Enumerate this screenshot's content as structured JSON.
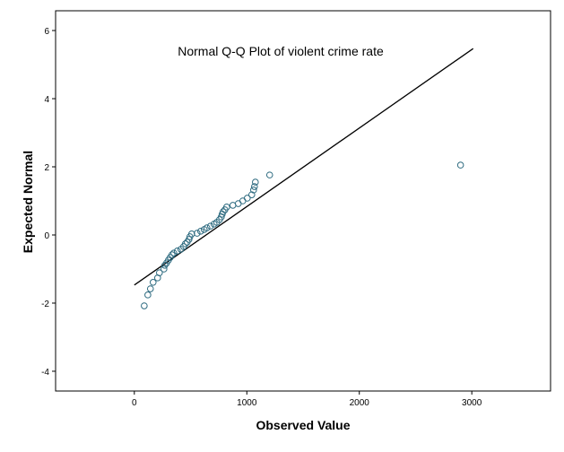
{
  "chart_data": {
    "type": "scatter",
    "title": "Normal Q-Q Plot of violent crime rate",
    "xlabel": "Observed Value",
    "ylabel": "Expected Normal",
    "xlim": [
      -700,
      3700
    ],
    "ylim": [
      -4.58,
      6.58
    ],
    "xticks": [
      0,
      1000,
      2000,
      3000
    ],
    "yticks": [
      -4,
      -2,
      0,
      2,
      4,
      6
    ],
    "grid": false,
    "legend": "none",
    "marker_color": "#2e6b80",
    "reference_line": {
      "x": [
        0,
        3012
      ],
      "y": [
        -1.47,
        5.47
      ]
    },
    "points": [
      [
        88,
        -2.08
      ],
      [
        120,
        -1.76
      ],
      [
        143,
        -1.58
      ],
      [
        167,
        -1.39
      ],
      [
        207,
        -1.26
      ],
      [
        223,
        -1.11
      ],
      [
        263,
        -1.0
      ],
      [
        271,
        -0.89
      ],
      [
        287,
        -0.82
      ],
      [
        303,
        -0.74
      ],
      [
        319,
        -0.66
      ],
      [
        335,
        -0.58
      ],
      [
        351,
        -0.53
      ],
      [
        382,
        -0.47
      ],
      [
        414,
        -0.42
      ],
      [
        438,
        -0.34
      ],
      [
        454,
        -0.26
      ],
      [
        470,
        -0.21
      ],
      [
        486,
        -0.13
      ],
      [
        494,
        -0.05
      ],
      [
        510,
        0.03
      ],
      [
        558,
        0.05
      ],
      [
        590,
        0.11
      ],
      [
        621,
        0.16
      ],
      [
        645,
        0.21
      ],
      [
        677,
        0.26
      ],
      [
        709,
        0.32
      ],
      [
        733,
        0.37
      ],
      [
        757,
        0.45
      ],
      [
        773,
        0.53
      ],
      [
        781,
        0.61
      ],
      [
        789,
        0.68
      ],
      [
        805,
        0.74
      ],
      [
        821,
        0.82
      ],
      [
        876,
        0.87
      ],
      [
        924,
        0.92
      ],
      [
        964,
        1.0
      ],
      [
        1004,
        1.08
      ],
      [
        1044,
        1.18
      ],
      [
        1060,
        1.32
      ],
      [
        1068,
        1.42
      ],
      [
        1076,
        1.55
      ],
      [
        1203,
        1.76
      ],
      [
        2900,
        2.05
      ]
    ]
  }
}
